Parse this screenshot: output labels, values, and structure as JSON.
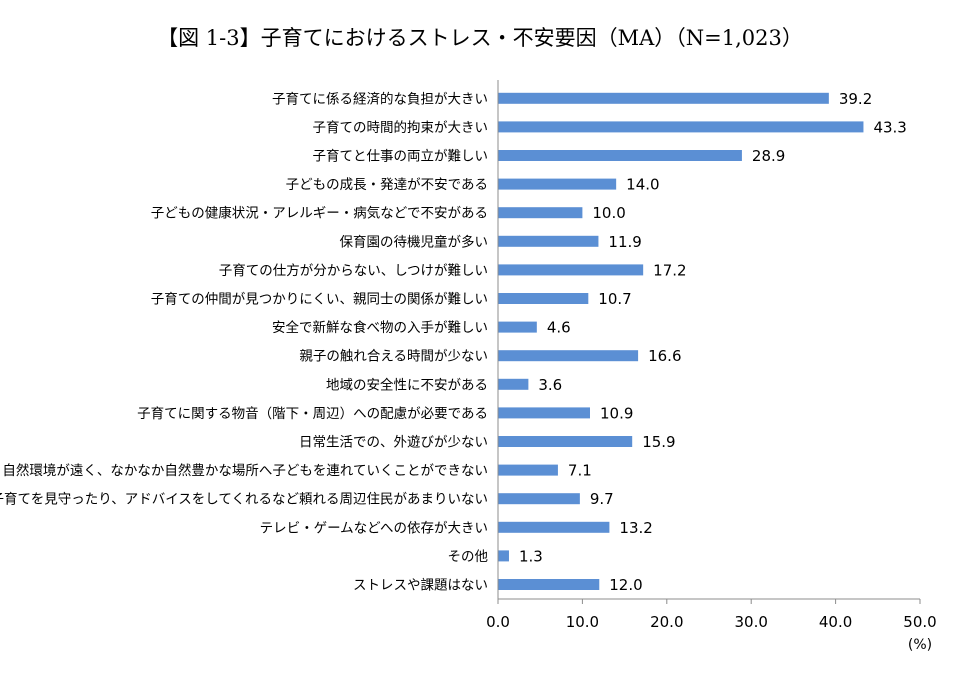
{
  "title": "【図 1-3】子育てにおけるストレス・不安要因（MA）（N=1,023）",
  "unit": "(%)",
  "colors": {
    "bar": "#5b8fd4",
    "axis": "#8c8c8c"
  },
  "chart_data": {
    "type": "bar",
    "orientation": "horizontal",
    "title": "【図 1-3】子育てにおけるストレス・不安要因（MA）（N=1,023）",
    "categories": [
      "子育てに係る経済的な負担が大きい",
      "子育ての時間的拘束が大きい",
      "子育てと仕事の両立が難しい",
      "子どもの成長・発達が不安である",
      "子どもの健康状況・アレルギー・病気などで不安がある",
      "保育園の待機児童が多い",
      "子育ての仕方が分からない、しつけが難しい",
      "子育ての仲間が見つかりにくい、親同士の関係が難しい",
      "安全で新鮮な食べ物の入手が難しい",
      "親子の触れ合える時間が少ない",
      "地域の安全性に不安がある",
      "子育てに関する物音（階下・周辺）への配慮が必要である",
      "日常生活での、外遊びが少ない",
      "自然環境が遠く、なかなか自然豊かな場所へ子どもを連れていくことができない",
      "子育てを見守ったり、アドバイスをしてくれるなど頼れる周辺住民があまりいない",
      "テレビ・ゲームなどへの依存が大きい",
      "その他",
      "ストレスや課題はない"
    ],
    "values": [
      39.2,
      43.3,
      28.9,
      14.0,
      10.0,
      11.9,
      17.2,
      10.7,
      4.6,
      16.6,
      3.6,
      10.9,
      15.9,
      7.1,
      9.7,
      13.2,
      1.3,
      12.0
    ],
    "value_labels": [
      "39.2",
      "43.3",
      "28.9",
      "14.0",
      "10.0",
      "11.9",
      "17.2",
      "10.7",
      "4.6",
      "16.6",
      "3.6",
      "10.9",
      "15.9",
      "7.1",
      "9.7",
      "13.2",
      "1.3",
      "12.0"
    ],
    "xlim": [
      0,
      50
    ],
    "xticks": [
      "0.0",
      "10.0",
      "20.0",
      "30.0",
      "40.0",
      "50.0"
    ],
    "xlabel": "(%)",
    "ylabel": "",
    "grid": false,
    "legend": "none"
  }
}
